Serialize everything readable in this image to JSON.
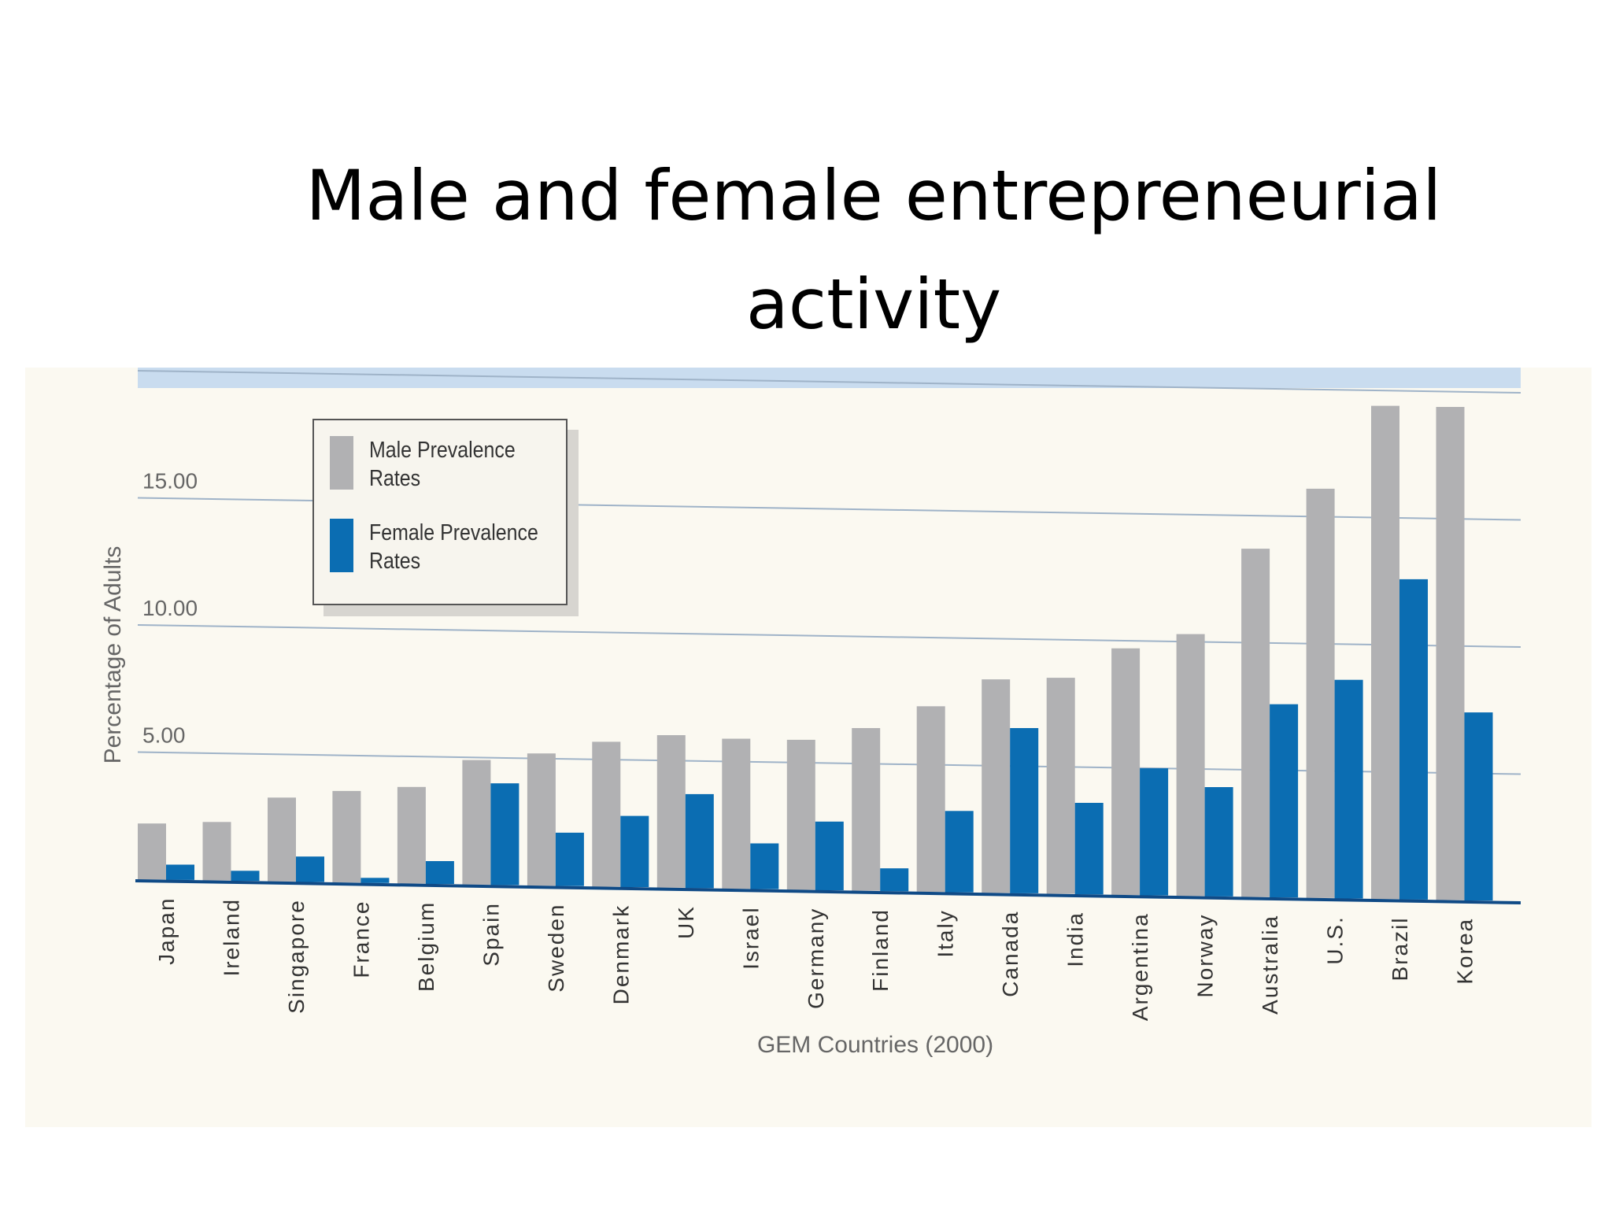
{
  "slide": {
    "title": "Male and female entrepreneurial activity"
  },
  "colors": {
    "male": "#b1b1b3",
    "female": "#0b6db2",
    "gridline": "#9fb3c8",
    "axis": "#0f4a86",
    "band": "#c9dcef"
  },
  "chart_data": {
    "type": "bar",
    "xlabel": "GEM Countries (2000)",
    "ylabel": "Percentage of Adults",
    "ylim": [
      0,
      20
    ],
    "yticks": [
      "5.00",
      "10.00",
      "15.00",
      "20.00"
    ],
    "grid": true,
    "legend_position": "top-left",
    "categories": [
      "Japan",
      "Ireland",
      "Singapore",
      "France",
      "Belgium",
      "Spain",
      "Sweden",
      "Denmark",
      "UK",
      "Israel",
      "Germany",
      "Finland",
      "Italy",
      "Canada",
      "India",
      "Argentina",
      "Norway",
      "Australia",
      "U.S.",
      "Brazil",
      "Korea"
    ],
    "series": [
      {
        "name": "Male Prevalence Rates",
        "values": [
          2.2,
          2.3,
          3.3,
          3.6,
          3.8,
          4.9,
          5.2,
          5.7,
          6.0,
          5.9,
          5.9,
          6.4,
          7.3,
          8.4,
          8.5,
          9.7,
          10.3,
          13.7,
          16.1,
          19.4,
          19.4
        ]
      },
      {
        "name": "Female Prevalence Rates",
        "values": [
          0.6,
          0.4,
          1.0,
          0.2,
          0.9,
          4.0,
          2.1,
          2.8,
          3.7,
          1.8,
          2.7,
          0.9,
          3.2,
          6.5,
          3.6,
          5.0,
          4.3,
          7.6,
          8.6,
          12.6,
          7.4
        ]
      }
    ]
  }
}
